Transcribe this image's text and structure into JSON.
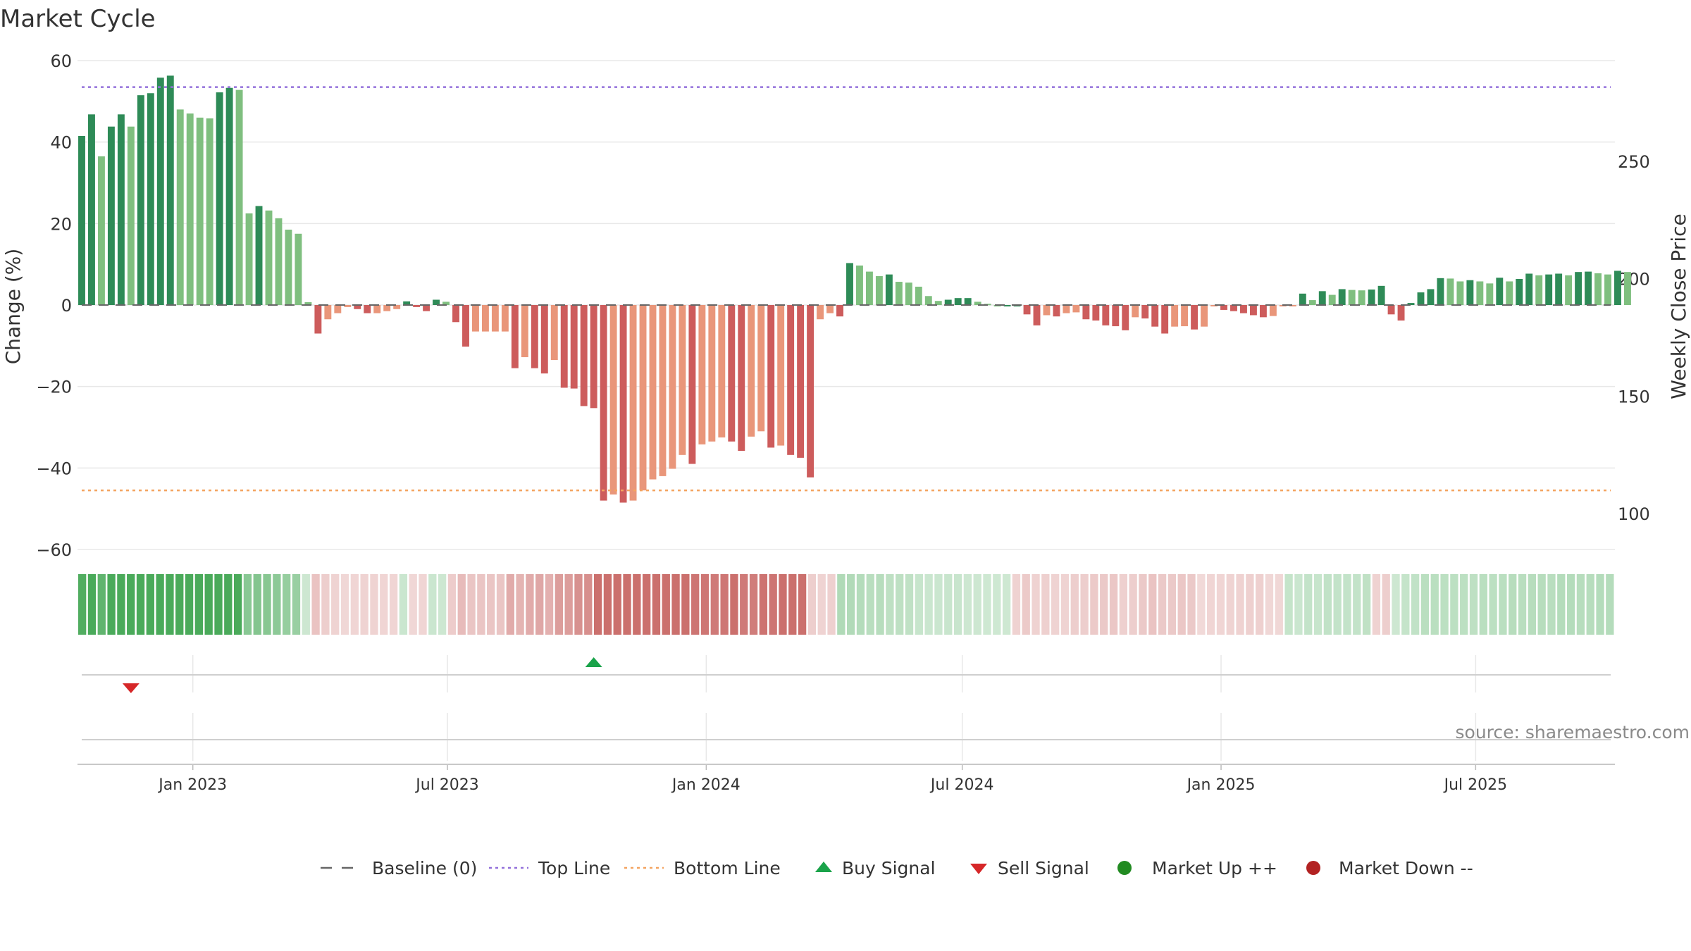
{
  "title": "Market Cycle",
  "source_note": "source: sharemaestro.com",
  "colors": {
    "strong_up": "#2e8b57",
    "up": "#7fbf7f",
    "strong_down": "#cd5c5c",
    "down": "#e9967a",
    "top_line": "#9370db",
    "bottom_line": "#f4a460",
    "baseline": "#666666",
    "buy": "#1aa34a",
    "sell": "#d62728",
    "market_up": "#228b22",
    "market_down": "#b22222"
  },
  "chart_data": {
    "type": "bar",
    "title": "Market Cycle",
    "ylabel": "Change (%)",
    "y2label": "Weekly Close Price",
    "ylim": [
      -60,
      60
    ],
    "y2lim": [
      100,
      250
    ],
    "yticks": [
      "60",
      "40",
      "20",
      "0",
      "−20",
      "−40",
      "−60"
    ],
    "y2ticks": [
      "250",
      "200",
      "150",
      "100"
    ],
    "x_range": [
      "2022-10-11",
      "2025-10-08"
    ],
    "x_ticks": [
      "Jan 2023",
      "Jul 2023",
      "Jan 2024",
      "Jul 2024",
      "Jan 2025",
      "Jul 2025"
    ],
    "grid": true,
    "legend_position": "bottom-center",
    "reference_lines": [
      {
        "name": "Baseline (0)",
        "y": 0
      },
      {
        "name": "Top Line",
        "y": 53.5
      },
      {
        "name": "Bottom Line",
        "y": -45.5
      }
    ],
    "start_week": "2022-10-14",
    "week_step_days": 7,
    "values": [
      41.5,
      46.8,
      36.5,
      43.8,
      46.8,
      43.8,
      51.5,
      52.0,
      55.8,
      56.3,
      48.0,
      47.0,
      46.0,
      45.8,
      52.2,
      53.3,
      52.8,
      22.5,
      24.3,
      23.2,
      21.3,
      18.5,
      17.5,
      0.7,
      -7.0,
      -3.5,
      -2.0,
      -0.5,
      -1.0,
      -2.0,
      -2.0,
      -1.5,
      -1.0,
      0.9,
      -0.5,
      -1.5,
      1.3,
      0.8,
      -4.2,
      -10.2,
      -6.5,
      -6.5,
      -6.5,
      -6.5,
      -15.5,
      -12.8,
      -15.5,
      -16.8,
      -13.5,
      -20.3,
      -20.5,
      -24.8,
      -25.3,
      -48.0,
      -46.5,
      -48.5,
      -48.0,
      -45.5,
      -42.8,
      -42.0,
      -40.2,
      -36.8,
      -39.0,
      -34.2,
      -33.5,
      -32.5,
      -33.5,
      -35.8,
      -32.3,
      -31.0,
      -35.0,
      -34.5,
      -36.8,
      -37.5,
      -42.3,
      -3.5,
      -2.0,
      -2.8,
      10.3,
      9.7,
      8.2,
      7.1,
      7.5,
      5.7,
      5.5,
      4.5,
      2.2,
      1.0,
      1.3,
      1.7,
      1.7,
      0.8,
      0.3,
      0.0,
      0.0,
      0.0,
      -2.3,
      -5.0,
      -2.5,
      -2.8,
      -2.0,
      -1.8,
      -3.5,
      -3.8,
      -5.0,
      -5.2,
      -6.2,
      -3.0,
      -3.3,
      -5.3,
      -7.0,
      -5.3,
      -5.2,
      -6.0,
      -5.3,
      -0.2,
      -1.2,
      -1.5,
      -2.0,
      -2.5,
      -3.0,
      -2.7,
      -0.3,
      -0.3,
      2.8,
      1.2,
      3.4,
      2.5,
      3.9,
      3.7,
      3.6,
      3.8,
      4.7,
      -2.3,
      -3.8,
      0.5,
      3.1,
      3.9,
      6.6,
      6.5,
      5.8,
      6.1,
      5.8,
      5.3,
      6.7,
      5.8,
      6.4,
      7.7,
      7.3,
      7.5,
      7.7,
      7.3,
      8.1,
      8.2,
      7.8,
      7.5,
      8.4,
      8.1
    ],
    "signals": [
      {
        "type": "sell",
        "date": "2022-11-20"
      },
      {
        "type": "buy",
        "date": "2023-10-15"
      }
    ]
  },
  "legend": [
    {
      "label": "Baseline (0)",
      "symbol": "dash"
    },
    {
      "label": "Top Line",
      "symbol": "dot-purple"
    },
    {
      "label": "Bottom Line",
      "symbol": "dot-orange"
    },
    {
      "label": "Buy Signal",
      "symbol": "triangle-up"
    },
    {
      "label": "Sell Signal",
      "symbol": "triangle-down"
    },
    {
      "label": "Market Up ++",
      "symbol": "circle-green"
    },
    {
      "label": "Market Down --",
      "symbol": "circle-red"
    }
  ]
}
